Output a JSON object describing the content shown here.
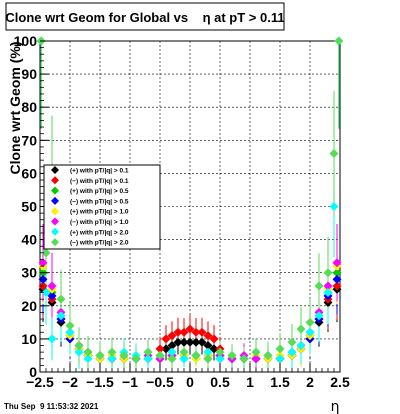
{
  "title": "Clone wrt Geom for Global vs    η at pT > 0.11",
  "footer": "Thu Sep  9 11:53:32 2021",
  "chart_data": {
    "type": "scatter",
    "title": "Clone wrt Geom for Global vs    η at pT > 0.11",
    "xlabel": "η",
    "ylabel": "Clone wrt Geom (%)",
    "xlim": [
      -2.5,
      2.5
    ],
    "ylim": [
      0,
      100
    ],
    "xticks": [
      -2.5,
      -2,
      -1.5,
      -1,
      -0.5,
      0,
      0.5,
      1,
      1.5,
      2,
      2.5
    ],
    "xtick_labels": [
      "−2.5",
      "−2",
      "−1.5",
      "−1",
      "−0.5",
      "0",
      "0.5",
      "1",
      "1.5",
      "2",
      "2.5"
    ],
    "yticks": [
      0,
      10,
      20,
      30,
      40,
      50,
      60,
      70,
      80,
      90,
      100
    ],
    "legend_position": "center-left",
    "grid": true,
    "series": [
      {
        "name": "(+) with pT/|q| > 0.1",
        "color": "#000000",
        "x": [
          -2.45,
          -2.3,
          -2.15,
          -2.0,
          -1.85,
          -1.7,
          -1.5,
          -1.3,
          -1.1,
          -0.9,
          -0.7,
          -0.5,
          -0.4,
          -0.3,
          -0.2,
          -0.1,
          0.0,
          0.1,
          0.2,
          0.3,
          0.4,
          0.5,
          0.7,
          0.9,
          1.1,
          1.3,
          1.5,
          1.7,
          1.85,
          2.0,
          2.15,
          2.3,
          2.45
        ],
        "y": [
          25,
          21,
          15,
          10,
          7,
          5,
          4,
          4,
          4,
          4,
          4,
          5,
          7,
          8,
          9,
          9,
          9,
          9,
          9,
          8,
          7,
          5,
          4,
          4,
          4,
          4,
          4,
          5,
          7,
          10,
          15,
          21,
          25
        ]
      },
      {
        "name": "(−) with pT/|q| > 0.1",
        "color": "#ff0000",
        "x": [
          -2.45,
          -2.3,
          -2.15,
          -2.0,
          -1.85,
          -1.7,
          -1.5,
          -1.3,
          -1.1,
          -0.9,
          -0.7,
          -0.5,
          -0.4,
          -0.3,
          -0.2,
          -0.1,
          0.0,
          0.1,
          0.2,
          0.3,
          0.4,
          0.5,
          0.7,
          0.9,
          1.1,
          1.3,
          1.5,
          1.7,
          1.85,
          2.0,
          2.15,
          2.3,
          2.45
        ],
        "y": [
          26,
          22,
          16,
          11,
          7,
          5,
          4,
          4,
          4,
          4,
          4,
          7,
          10,
          11,
          12,
          12,
          13,
          12,
          12,
          11,
          10,
          7,
          4,
          4,
          4,
          4,
          4,
          5,
          7,
          11,
          16,
          22,
          26
        ]
      },
      {
        "name": "(+) with pT/|q| > 0.5",
        "color": "#00cc00",
        "x": [
          -2.45,
          -2.3,
          -2.15,
          -2.0,
          -1.85,
          -1.7,
          -1.5,
          -1.3,
          -1.1,
          -0.9,
          -0.7,
          -0.5,
          -0.3,
          -0.1,
          0.1,
          0.3,
          0.5,
          0.7,
          0.9,
          1.1,
          1.3,
          1.5,
          1.7,
          1.85,
          2.0,
          2.15,
          2.3,
          2.45
        ],
        "y": [
          30,
          24,
          17,
          11,
          7,
          5,
          4,
          4,
          4,
          4,
          4,
          4,
          4,
          4,
          4,
          4,
          4,
          4,
          4,
          4,
          4,
          4,
          5,
          7,
          11,
          17,
          24,
          30
        ]
      },
      {
        "name": "(−) with pT/|q| > 0.5",
        "color": "#0000ff",
        "x": [
          -2.45,
          -2.3,
          -2.15,
          -2.0,
          -1.85,
          -1.7,
          -1.5,
          -1.3,
          -1.1,
          -0.9,
          -0.7,
          -0.5,
          -0.3,
          -0.1,
          0.1,
          0.3,
          0.5,
          0.7,
          0.9,
          1.1,
          1.3,
          1.5,
          1.7,
          1.85,
          2.0,
          2.15,
          2.3,
          2.45
        ],
        "y": [
          28,
          23,
          16,
          10,
          7,
          5,
          4,
          4,
          4,
          4,
          4,
          4,
          5,
          5,
          5,
          5,
          4,
          4,
          4,
          4,
          4,
          4,
          5,
          7,
          10,
          16,
          23,
          28
        ]
      },
      {
        "name": "(+) with pT/|q| > 1.0",
        "color": "#ffee00",
        "x": [
          -2.45,
          -2.3,
          -2.15,
          -2.0,
          -1.85,
          -1.7,
          -1.5,
          -1.3,
          -1.1,
          -0.9,
          -0.7,
          -0.5,
          -0.3,
          -0.1,
          0.1,
          0.3,
          0.5,
          0.7,
          0.9,
          1.1,
          1.3,
          1.5,
          1.7,
          1.85,
          2.0,
          2.15,
          2.3,
          2.45
        ],
        "y": [
          32,
          25,
          18,
          11,
          7,
          5,
          4,
          5,
          4,
          5,
          4,
          5,
          4,
          5,
          4,
          5,
          4,
          5,
          4,
          5,
          4,
          5,
          5,
          7,
          11,
          18,
          25,
          32
        ]
      },
      {
        "name": "(−) with pT/|q| > 1.0",
        "color": "#ff00ff",
        "x": [
          -2.45,
          -2.3,
          -2.15,
          -2.0,
          -1.85,
          -1.7,
          -1.5,
          -1.3,
          -1.1,
          -0.9,
          -0.7,
          -0.5,
          -0.3,
          -0.1,
          0.1,
          0.3,
          0.5,
          0.7,
          0.9,
          1.1,
          1.3,
          1.5,
          1.7,
          1.85,
          2.0,
          2.15,
          2.3,
          2.45
        ],
        "y": [
          33,
          26,
          18,
          12,
          8,
          6,
          5,
          4,
          5,
          4,
          5,
          4,
          5,
          4,
          5,
          4,
          5,
          4,
          5,
          4,
          5,
          4,
          6,
          8,
          12,
          18,
          26,
          33
        ]
      },
      {
        "name": "(+) with pT/|q| > 2.0",
        "color": "#00ffff",
        "x": [
          -2.48,
          -2.4,
          -2.3,
          -2.15,
          -2.0,
          -1.85,
          -1.7,
          -1.5,
          -1.3,
          -1.1,
          -0.9,
          -0.7,
          -0.5,
          -0.3,
          -0.1,
          0.1,
          0.3,
          0.5,
          0.7,
          0.9,
          1.1,
          1.3,
          1.5,
          1.7,
          1.85,
          2.0,
          2.15,
          2.3,
          2.4,
          2.48
        ],
        "y": [
          100,
          24,
          10,
          17,
          12,
          6,
          4,
          5,
          4,
          6,
          5,
          4,
          5,
          6,
          4,
          5,
          6,
          4,
          5,
          4,
          6,
          5,
          4,
          6,
          8,
          12,
          17,
          24,
          50,
          100
        ]
      },
      {
        "name": "(−) with pT/|q| > 2.0",
        "color": "#55dd55",
        "x": [
          -2.48,
          -2.4,
          -2.3,
          -2.15,
          -2.0,
          -1.85,
          -1.7,
          -1.5,
          -1.3,
          -1.1,
          -0.9,
          -0.7,
          -0.5,
          -0.3,
          -0.1,
          0.1,
          0.3,
          0.5,
          0.7,
          0.9,
          1.1,
          1.3,
          1.5,
          1.7,
          1.85,
          2.0,
          2.15,
          2.3,
          2.4,
          2.48
        ],
        "y": [
          100,
          36,
          60,
          22,
          14,
          8,
          6,
          5,
          6,
          5,
          4,
          6,
          5,
          4,
          6,
          5,
          4,
          6,
          5,
          4,
          6,
          5,
          7,
          9,
          13,
          15,
          26,
          30,
          66,
          100
        ]
      }
    ]
  }
}
